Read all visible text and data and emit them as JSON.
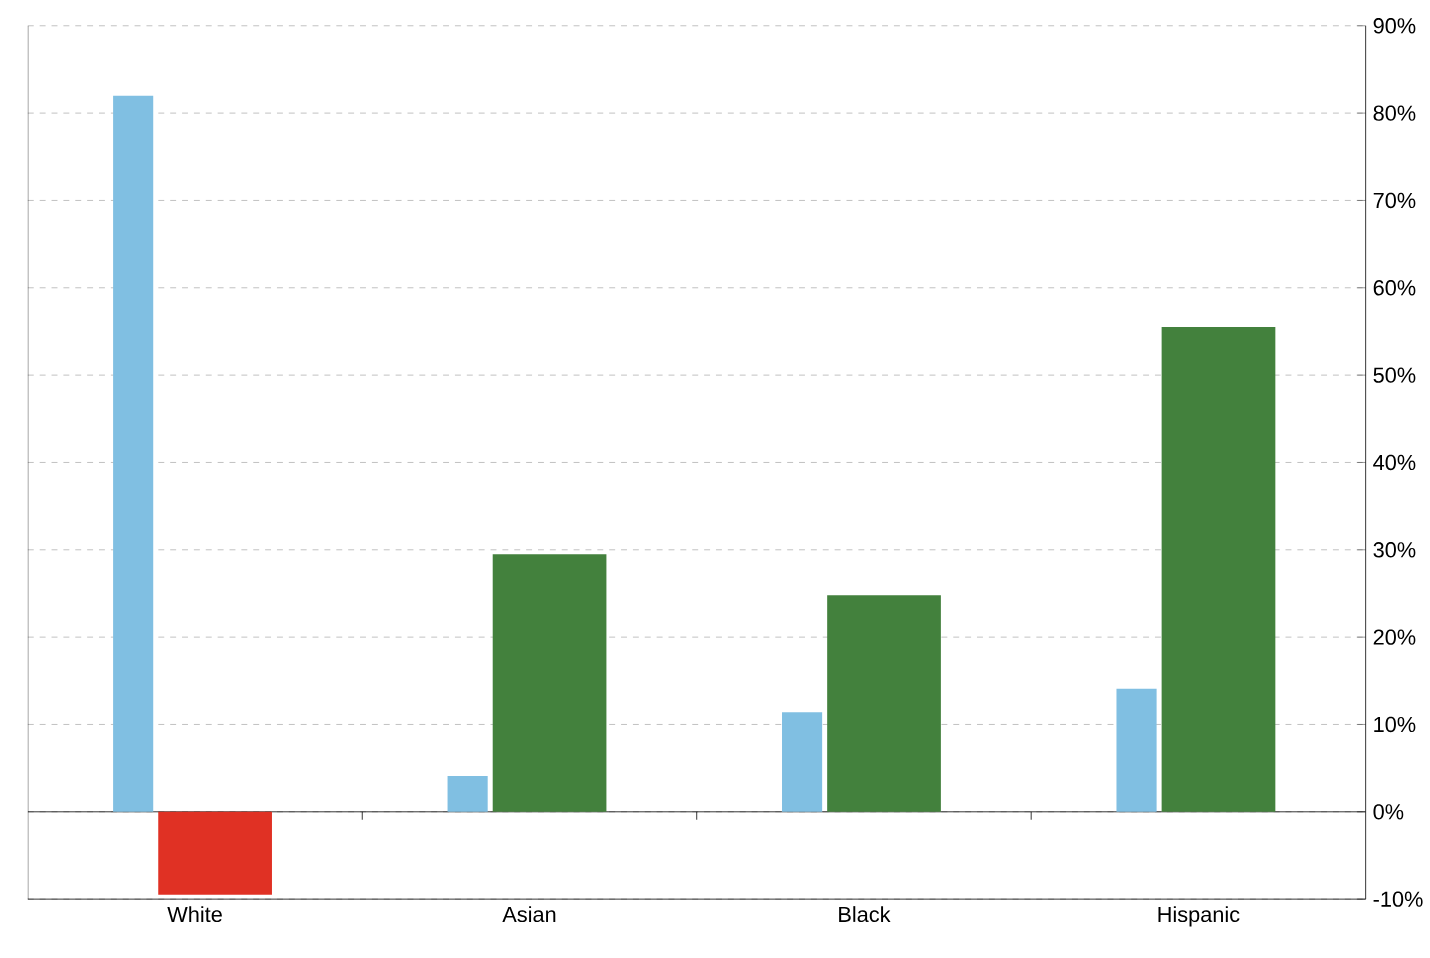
{
  "chart_data": {
    "type": "bar",
    "categories": [
      "White",
      "Asian",
      "Black",
      "Hispanic"
    ],
    "series": [
      {
        "color": "#80bfe2",
        "values": [
          82.0,
          4.1,
          11.4,
          14.1
        ]
      },
      {
        "colors": [
          "#e03124",
          "#43813d",
          "#43813d",
          "#43813d"
        ],
        "values": [
          -9.5,
          29.5,
          24.8,
          55.5
        ]
      }
    ],
    "ylim": [
      -10,
      90
    ],
    "yticks": [
      {
        "value": -10,
        "label": "-10%"
      },
      {
        "value": 0,
        "label": "0%"
      },
      {
        "value": 10,
        "label": "10%"
      },
      {
        "value": 20,
        "label": "20%"
      },
      {
        "value": 30,
        "label": "30%"
      },
      {
        "value": 40,
        "label": "40%"
      },
      {
        "value": 50,
        "label": "50%"
      },
      {
        "value": 60,
        "label": "60%"
      },
      {
        "value": 70,
        "label": "70%"
      },
      {
        "value": 80,
        "label": "80%"
      },
      {
        "value": 90,
        "label": "90%"
      }
    ],
    "grid": "y"
  }
}
